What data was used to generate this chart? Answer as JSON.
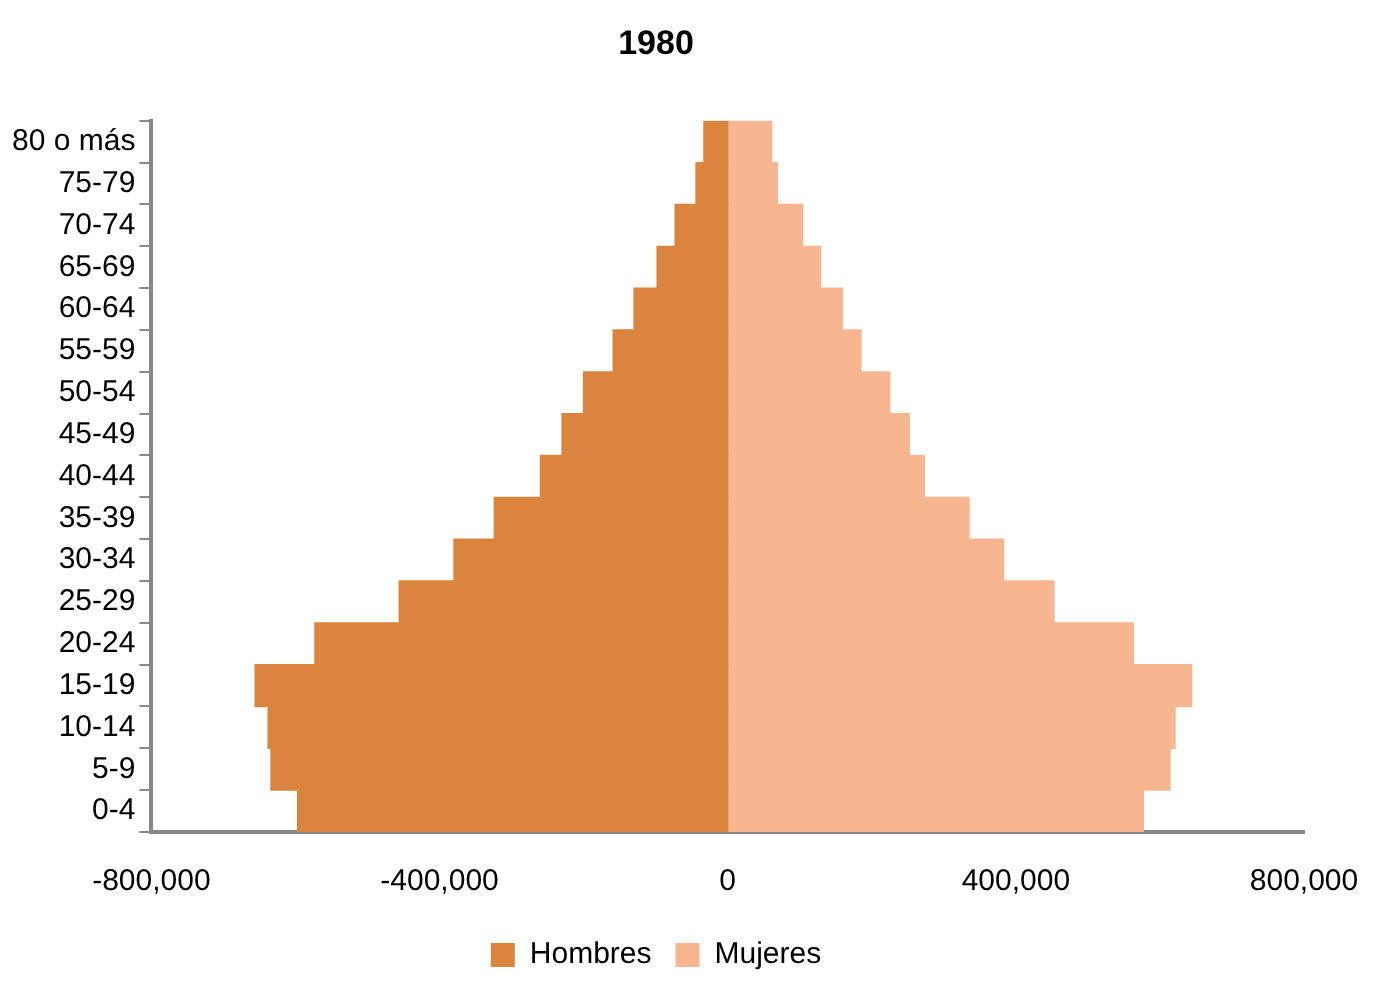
{
  "chart_data": {
    "type": "bar",
    "title": "1980",
    "orientation": "horizontal",
    "stacked": true,
    "categories": [
      "80 o más",
      "75-79",
      "70-74",
      "65-69",
      "60-64",
      "55-59",
      "50-54",
      "45-49",
      "40-44",
      "35-39",
      "30-34",
      "25-29",
      "20-24",
      "15-19",
      "10-14",
      "5-9",
      "0-4"
    ],
    "series": [
      {
        "name": "Hombres",
        "color": "#da843e",
        "values": [
          -33000,
          -44000,
          -73000,
          -98000,
          -130000,
          -159000,
          -200000,
          -230000,
          -260000,
          -324000,
          -380000,
          -456000,
          -573000,
          -656000,
          -638000,
          -634000,
          -597000
        ]
      },
      {
        "name": "Mujeres",
        "color": "#f8b690",
        "values": [
          61000,
          69000,
          104000,
          129000,
          159000,
          185000,
          225000,
          252000,
          273000,
          335000,
          383000,
          453000,
          563000,
          644000,
          621000,
          614000,
          577000
        ]
      }
    ],
    "xlim": [
      -800000,
      800000
    ],
    "xticks": [
      {
        "value": -800000,
        "label": "-800,000"
      },
      {
        "value": -400000,
        "label": "-400,000"
      },
      0,
      {
        "value": 400000,
        "label": "400,000"
      },
      {
        "value": 800000,
        "label": "800,000"
      }
    ],
    "grid": false,
    "legend": "bottom"
  }
}
